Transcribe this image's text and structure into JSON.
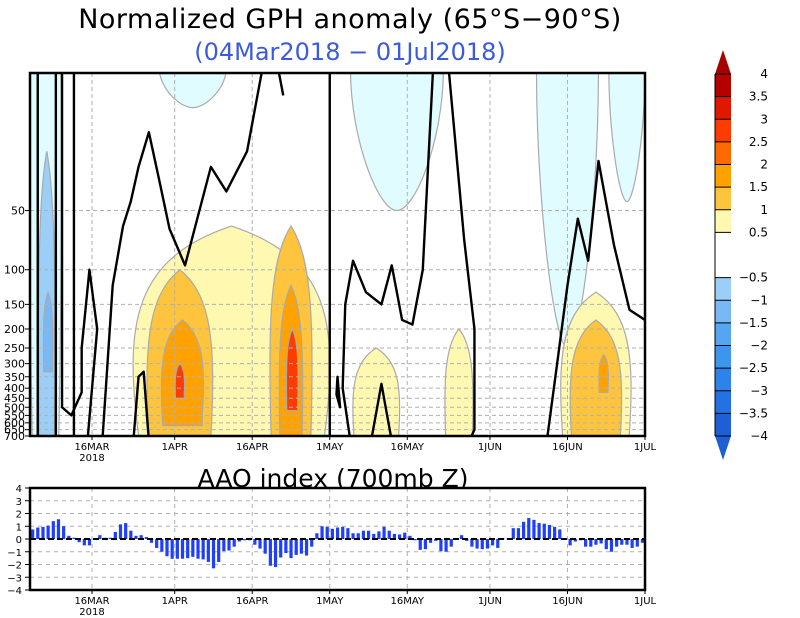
{
  "chart_data": [
    {
      "type": "heatmap",
      "subtype": "time-pressure filled contour",
      "title": "Normalized GPH anomaly (65°S−90°S)",
      "subtitle": "(04Mar2018 − 01Jul2018)",
      "xlabel": "",
      "ylabel": "",
      "x_range": [
        "2018-03-04",
        "2018-07-01"
      ],
      "x_tick_labels": [
        {
          "label": "16MAR",
          "sublabel": "2018",
          "date": "2018-03-16"
        },
        {
          "label": "1APR",
          "sublabel": "",
          "date": "2018-04-01"
        },
        {
          "label": "16APR",
          "sublabel": "",
          "date": "2018-04-16"
        },
        {
          "label": "1MAY",
          "sublabel": "",
          "date": "2018-05-01"
        },
        {
          "label": "16MAY",
          "sublabel": "",
          "date": "2018-05-16"
        },
        {
          "label": "1JUN",
          "sublabel": "",
          "date": "2018-06-01"
        },
        {
          "label": "16JUN",
          "sublabel": "",
          "date": "2018-06-16"
        },
        {
          "label": "1JUL",
          "sublabel": "",
          "date": "2018-07-01"
        }
      ],
      "y_scale": "log",
      "y_range_hpa": [
        10,
        700
      ],
      "y_tick_labels": [
        "50",
        "100",
        "150",
        "200",
        "250",
        "300",
        "350",
        "400",
        "450",
        "500",
        "550",
        "600",
        "650",
        "700"
      ],
      "y_tick_values": [
        50,
        100,
        150,
        200,
        250,
        300,
        350,
        400,
        450,
        500,
        550,
        600,
        650,
        700
      ],
      "colorbar": {
        "levels": [
          -4,
          -3.5,
          -3,
          -2.5,
          -2,
          -1.5,
          -1,
          -0.5,
          0.5,
          1,
          1.5,
          2,
          2.5,
          3,
          3.5,
          4
        ],
        "tick_labels": [
          "4",
          "3.5",
          "3",
          "2.5",
          "2",
          "1.5",
          "1",
          "0.5",
          "−0.5",
          "−1",
          "−1.5",
          "−2",
          "−2.5",
          "−3",
          "−3.5",
          "−4"
        ],
        "colors_low_to_high": [
          "#1e5fd6",
          "#2272e6",
          "#2d83ea",
          "#3d95ee",
          "#55a5f0",
          "#78b9f5",
          "#9ccff8",
          "#e0fcfe",
          "#ffffff",
          "#fff8b0",
          "#ffc43d",
          "#ffa200",
          "#ff6a00",
          "#ff3c00",
          "#e01800",
          "#b50000"
        ],
        "under_color": "#1e5fd6",
        "over_color": "#a80000",
        "placement": "right"
      },
      "blobs": [
        {
          "kind": "neg",
          "level": -0.5,
          "t": [
            0,
            6
          ],
          "p": [
            10,
            700
          ]
        },
        {
          "kind": "neg",
          "level": -1,
          "t": [
            1.5,
            5
          ],
          "p": [
            25,
            700
          ]
        },
        {
          "kind": "neg",
          "level": -1.5,
          "t": [
            2.5,
            4.5
          ],
          "p": [
            130,
            330
          ]
        },
        {
          "kind": "neg",
          "level": -0.5,
          "t": [
            25,
            38
          ],
          "p": [
            10,
            15
          ]
        },
        {
          "kind": "neg",
          "level": -0.5,
          "t": [
            62,
            80
          ],
          "p": [
            10,
            50
          ]
        },
        {
          "kind": "neg",
          "level": -0.5,
          "t": [
            98,
            110
          ],
          "p": [
            10,
            250
          ]
        },
        {
          "kind": "neg",
          "level": -0.5,
          "t": [
            112,
            119
          ],
          "p": [
            10,
            45
          ]
        },
        {
          "kind": "pos",
          "level": 0.5,
          "t": [
            18,
            60
          ],
          "p": [
            60,
            700
          ]
        },
        {
          "kind": "pos",
          "level": 1,
          "t": [
            22,
            36
          ],
          "p": [
            100,
            700
          ]
        },
        {
          "kind": "pos",
          "level": 1.5,
          "t": [
            25,
            34
          ],
          "p": [
            180,
            620
          ]
        },
        {
          "kind": "pos",
          "level": 2.5,
          "t": [
            28,
            30
          ],
          "p": [
            300,
            450
          ]
        },
        {
          "kind": "pos",
          "level": 1,
          "t": [
            46,
            55
          ],
          "p": [
            60,
            700
          ]
        },
        {
          "kind": "pos",
          "level": 1.5,
          "t": [
            48,
            53
          ],
          "p": [
            120,
            700
          ]
        },
        {
          "kind": "pos",
          "level": 2.5,
          "t": [
            49.5,
            52
          ],
          "p": [
            200,
            520
          ]
        },
        {
          "kind": "pos",
          "level": 0.5,
          "t": [
            62,
            72
          ],
          "p": [
            250,
            700
          ]
        },
        {
          "kind": "pos",
          "level": 0.5,
          "t": [
            80,
            86
          ],
          "p": [
            200,
            700
          ]
        },
        {
          "kind": "pos",
          "level": 0.5,
          "t": [
            102,
            117
          ],
          "p": [
            130,
            700
          ]
        },
        {
          "kind": "pos",
          "level": 1,
          "t": [
            104,
            115
          ],
          "p": [
            180,
            700
          ]
        },
        {
          "kind": "pos",
          "level": 1.5,
          "t": [
            110,
            112
          ],
          "p": [
            270,
            420
          ]
        }
      ],
      "zero_contour_note": "thick black zero-anomaly contours"
    },
    {
      "type": "bar",
      "title": "AAO index (700mb Z)",
      "xlabel": "",
      "ylabel": "",
      "ylim": [
        -4,
        4
      ],
      "y_tick_labels": [
        "4",
        "3",
        "2",
        "1",
        "0",
        "−1",
        "−2",
        "−3",
        "−4"
      ],
      "grid": true,
      "bar_color": "#1f3fff",
      "start_date": "2018-03-04",
      "x_tick_labels": [
        {
          "label": "16MAR",
          "sublabel": "2018",
          "day": 12
        },
        {
          "label": "1APR",
          "sublabel": "",
          "day": 28
        },
        {
          "label": "16APR",
          "sublabel": "",
          "day": 43
        },
        {
          "label": "1MAY",
          "sublabel": "",
          "day": 58
        },
        {
          "label": "16MAY",
          "sublabel": "",
          "day": 73
        },
        {
          "label": "1JUN",
          "sublabel": "",
          "day": 89
        },
        {
          "label": "16JUN",
          "sublabel": "",
          "day": 104
        },
        {
          "label": "1JUL",
          "sublabel": "",
          "day": 119
        }
      ],
      "values": [
        0.75,
        0.9,
        0.95,
        1.05,
        1.4,
        1.55,
        1.0,
        0.25,
        0.1,
        -0.25,
        -0.5,
        -0.5,
        0.05,
        0.3,
        0.1,
        0.1,
        0.55,
        1.15,
        1.25,
        0.65,
        0.25,
        0.3,
        0.15,
        -0.3,
        -0.7,
        -1.0,
        -1.35,
        -1.55,
        -1.55,
        -1.55,
        -1.5,
        -1.4,
        -1.55,
        -1.6,
        -1.8,
        -2.3,
        -1.8,
        -0.95,
        -0.9,
        -0.6,
        -0.2,
        -0.1,
        -0.1,
        -0.45,
        -0.75,
        -1.15,
        -2.1,
        -2.2,
        -1.45,
        -1.1,
        -1.5,
        -1.25,
        -1.15,
        -1.3,
        -0.6,
        0.45,
        1.0,
        0.95,
        0.8,
        0.9,
        0.95,
        0.85,
        0.45,
        0.45,
        0.65,
        0.65,
        0.4,
        0.6,
        0.95,
        0.65,
        0.4,
        0.35,
        0.5,
        0.25,
        -0.1,
        -0.85,
        -0.8,
        -0.3,
        -0.15,
        -0.95,
        -1.0,
        -0.6,
        0.05,
        0.3,
        -0.15,
        -0.6,
        -0.75,
        -0.8,
        -0.75,
        -0.5,
        -0.7,
        0.05,
        0.05,
        0.85,
        0.85,
        1.35,
        1.65,
        1.5,
        1.25,
        1.2,
        1.1,
        0.95,
        0.75,
        0.05,
        -0.5,
        -0.2,
        -0.1,
        -0.6,
        -0.6,
        -0.45,
        -0.35,
        -0.8,
        -1.0,
        -0.6,
        -0.45,
        -0.45,
        -0.7,
        -0.6,
        -0.3
      ]
    }
  ]
}
